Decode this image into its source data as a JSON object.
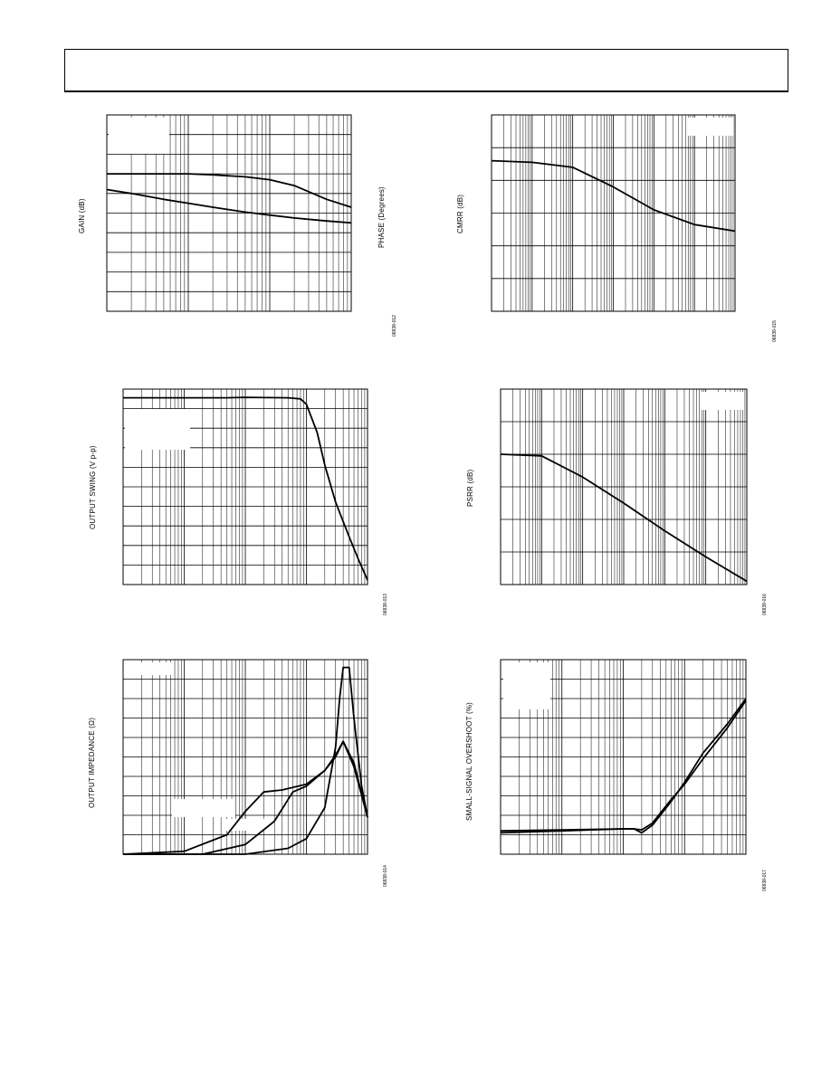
{
  "header": {
    "title": ""
  },
  "charts": [
    {
      "id": "gain-phase",
      "ylabel": "GAIN (dB)",
      "ylabel_right": "PHASE (Degrees)",
      "fig_id": "06838-012",
      "chart_data": {
        "type": "line",
        "title": "",
        "xlabel": "",
        "ylabel": "GAIN (dB)",
        "ylabel_right": "PHASE (Degrees)",
        "x_scale": "log",
        "grid": true,
        "xlim": [
          1,
          1000
        ],
        "ylim": [
          0,
          10
        ],
        "series": [
          {
            "x": [
              1,
              2,
              5,
              10,
              20,
              50,
              100,
              200,
              500,
              1000
            ],
            "y": [
              7.0,
              7.0,
              7.0,
              7.0,
              6.95,
              6.85,
              6.7,
              6.4,
              5.7,
              5.3
            ]
          },
          {
            "x": [
              1,
              2,
              5,
              10,
              20,
              50,
              100,
              200,
              500,
              1000
            ],
            "y": [
              6.2,
              6.0,
              5.7,
              5.5,
              5.3,
              5.05,
              4.9,
              4.75,
              4.6,
              4.5
            ]
          }
        ]
      }
    },
    {
      "id": "cmrr",
      "ylabel": "CMRR (dB)",
      "fig_id": "06838-015",
      "chart_data": {
        "type": "line",
        "title": "",
        "xlabel": "",
        "ylabel": "CMRR (dB)",
        "x_scale": "log",
        "grid": true,
        "xlim": [
          1,
          1000000
        ],
        "ylim": [
          0,
          6
        ],
        "series": [
          {
            "x": [
              1,
              10,
              100,
              1000,
              10000,
              100000,
              1000000
            ],
            "y": [
              4.6,
              4.55,
              4.4,
              3.8,
              3.1,
              2.65,
              2.45
            ]
          }
        ]
      }
    },
    {
      "id": "output-swing",
      "ylabel": "OUTPUT SWING (V p-p)",
      "fig_id": "06838-013",
      "chart_data": {
        "type": "line",
        "title": "",
        "xlabel": "",
        "ylabel": "OUTPUT SWING (V p-p)",
        "x_scale": "log",
        "grid": true,
        "xlim": [
          1,
          10000
        ],
        "ylim": [
          0,
          9
        ],
        "series": [
          {
            "x": [
              1,
              10,
              50,
              100,
              500,
              800,
              1000,
              1500,
              2000,
              3000,
              5000,
              7000,
              10000
            ],
            "y": [
              8.6,
              8.6,
              8.6,
              8.62,
              8.6,
              8.55,
              8.3,
              7.0,
              5.5,
              3.8,
              2.2,
              1.2,
              0.2
            ]
          }
        ]
      }
    },
    {
      "id": "psrr",
      "ylabel": "PSRR (dB)",
      "fig_id": "06838-016",
      "chart_data": {
        "type": "line",
        "title": "",
        "xlabel": "",
        "ylabel": "PSRR (dB)",
        "x_scale": "log",
        "grid": true,
        "xlim": [
          1,
          1000000
        ],
        "ylim": [
          0,
          6
        ],
        "series": [
          {
            "x": [
              1,
              10,
              100,
              1000,
              10000,
              100000,
              1000000
            ],
            "y": [
              4.0,
              3.95,
              3.3,
              2.5,
              1.65,
              0.85,
              0.1
            ]
          }
        ]
      }
    },
    {
      "id": "output-impedance",
      "ylabel": "OUTPUT IMPEDANCE (Ω)",
      "fig_id": "06838-014",
      "chart_data": {
        "type": "line",
        "title": "",
        "xlabel": "",
        "ylabel": "OUTPUT IMPEDANCE (Ω)",
        "x_scale": "log",
        "grid": true,
        "xlim": [
          1,
          10000
        ],
        "ylim": [
          0,
          10
        ],
        "series": [
          {
            "x": [
              1,
              10,
              50,
              100,
              200,
              400,
              1000,
              2000,
              3000,
              4000,
              6000,
              10000
            ],
            "y": [
              0.0,
              0.15,
              1.0,
              2.2,
              3.2,
              3.3,
              3.6,
              4.3,
              5.1,
              5.8,
              4.5,
              1.9
            ]
          },
          {
            "x": [
              1,
              20,
              100,
              300,
              600,
              1000,
              2000,
              3000,
              4000,
              6000,
              10000
            ],
            "y": [
              0.0,
              0.0,
              0.5,
              1.7,
              3.2,
              3.5,
              4.3,
              5.0,
              5.8,
              4.7,
              1.9
            ]
          },
          {
            "x": [
              1,
              100,
              500,
              1000,
              2000,
              3000,
              3500,
              4000,
              5000,
              6000,
              8000,
              10000
            ],
            "y": [
              0.0,
              0.0,
              0.3,
              0.8,
              2.4,
              5.5,
              8.0,
              9.6,
              9.6,
              7.0,
              3.5,
              1.9
            ]
          }
        ]
      }
    },
    {
      "id": "small-signal-overshoot",
      "ylabel": "SMALL-SIGNAL OVERSHOOT (%)",
      "fig_id": "06838-017",
      "chart_data": {
        "type": "line",
        "title": "",
        "xlabel": "",
        "ylabel": "SMALL-SIGNAL OVERSHOOT (%)",
        "x_scale": "log",
        "grid": true,
        "xlim": [
          1,
          10000
        ],
        "ylim": [
          0,
          10
        ],
        "series": [
          {
            "x": [
              1,
              10,
              100,
              150,
              200,
              300,
              600,
              1000,
              2000,
              5000,
              10000
            ],
            "y": [
              1.2,
              1.25,
              1.3,
              1.3,
              1.1,
              1.5,
              2.7,
              3.7,
              5.2,
              6.7,
              8.0
            ]
          },
          {
            "x": [
              1,
              10,
              100,
              150,
              200,
              300,
              600,
              1000,
              2000,
              5000,
              10000
            ],
            "y": [
              1.1,
              1.2,
              1.3,
              1.3,
              1.25,
              1.6,
              2.8,
              3.6,
              4.9,
              6.5,
              7.9
            ]
          }
        ]
      }
    }
  ]
}
